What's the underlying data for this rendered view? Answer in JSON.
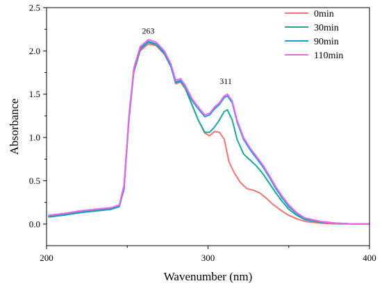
{
  "chart_data": {
    "type": "line",
    "xlabel": "Wavenumber (nm)",
    "ylabel": "Absorbance",
    "xlim": [
      200,
      400
    ],
    "ylim": [
      -0.25,
      2.5
    ],
    "xticks": [
      200,
      300,
      400
    ],
    "xtick_labels": [
      "200",
      "300",
      "400"
    ],
    "yticks": [
      0.0,
      0.5,
      1.0,
      1.5,
      2.0,
      2.5
    ],
    "ytick_labels": [
      "0.0",
      "0.5",
      "1.0",
      "1.5",
      "2.0",
      "2.5"
    ],
    "grid": false,
    "legend_position": "top-right",
    "annotations": [
      {
        "text": "263",
        "x": 263,
        "y": 2.2
      },
      {
        "text": "311",
        "x": 311,
        "y": 1.62
      }
    ],
    "series": [
      {
        "name": "0min",
        "color": "#f07470",
        "points": [
          [
            201,
            0.08
          ],
          [
            210,
            0.1
          ],
          [
            220,
            0.13
          ],
          [
            230,
            0.15
          ],
          [
            240,
            0.17
          ],
          [
            245,
            0.2
          ],
          [
            248,
            0.4
          ],
          [
            251,
            1.2
          ],
          [
            254,
            1.75
          ],
          [
            258,
            2.0
          ],
          [
            263,
            2.08
          ],
          [
            268,
            2.06
          ],
          [
            273,
            1.96
          ],
          [
            277,
            1.82
          ],
          [
            280,
            1.62
          ],
          [
            283,
            1.64
          ],
          [
            286,
            1.56
          ],
          [
            290,
            1.38
          ],
          [
            294,
            1.2
          ],
          [
            298,
            1.05
          ],
          [
            301,
            1.02
          ],
          [
            304,
            1.07
          ],
          [
            307,
            1.06
          ],
          [
            310,
            0.98
          ],
          [
            313,
            0.72
          ],
          [
            316,
            0.6
          ],
          [
            320,
            0.48
          ],
          [
            324,
            0.41
          ],
          [
            328,
            0.39
          ],
          [
            332,
            0.36
          ],
          [
            336,
            0.3
          ],
          [
            340,
            0.23
          ],
          [
            345,
            0.16
          ],
          [
            350,
            0.1
          ],
          [
            355,
            0.06
          ],
          [
            360,
            0.03
          ],
          [
            370,
            0.01
          ],
          [
            380,
            0.0
          ],
          [
            390,
            0.0
          ],
          [
            400,
            0.0
          ]
        ]
      },
      {
        "name": "30min",
        "color": "#1aa69a",
        "points": [
          [
            201,
            0.08
          ],
          [
            210,
            0.1
          ],
          [
            220,
            0.13
          ],
          [
            230,
            0.15
          ],
          [
            240,
            0.17
          ],
          [
            245,
            0.2
          ],
          [
            248,
            0.42
          ],
          [
            251,
            1.22
          ],
          [
            254,
            1.77
          ],
          [
            258,
            2.02
          ],
          [
            263,
            2.1
          ],
          [
            268,
            2.07
          ],
          [
            273,
            1.97
          ],
          [
            277,
            1.82
          ],
          [
            280,
            1.63
          ],
          [
            283,
            1.65
          ],
          [
            286,
            1.57
          ],
          [
            290,
            1.38
          ],
          [
            294,
            1.2
          ],
          [
            298,
            1.06
          ],
          [
            301,
            1.06
          ],
          [
            304,
            1.12
          ],
          [
            307,
            1.2
          ],
          [
            310,
            1.3
          ],
          [
            312,
            1.32
          ],
          [
            315,
            1.2
          ],
          [
            318,
            0.98
          ],
          [
            322,
            0.81
          ],
          [
            326,
            0.74
          ],
          [
            330,
            0.67
          ],
          [
            334,
            0.58
          ],
          [
            338,
            0.47
          ],
          [
            342,
            0.36
          ],
          [
            346,
            0.26
          ],
          [
            350,
            0.17
          ],
          [
            355,
            0.1
          ],
          [
            360,
            0.05
          ],
          [
            370,
            0.02
          ],
          [
            380,
            0.01
          ],
          [
            390,
            0.0
          ],
          [
            400,
            0.0
          ]
        ]
      },
      {
        "name": "90min",
        "color": "#1e9bd6",
        "points": [
          [
            201,
            0.09
          ],
          [
            210,
            0.11
          ],
          [
            220,
            0.14
          ],
          [
            230,
            0.16
          ],
          [
            240,
            0.18
          ],
          [
            245,
            0.21
          ],
          [
            248,
            0.43
          ],
          [
            251,
            1.23
          ],
          [
            254,
            1.78
          ],
          [
            258,
            2.03
          ],
          [
            263,
            2.11
          ],
          [
            268,
            2.08
          ],
          [
            273,
            1.98
          ],
          [
            277,
            1.83
          ],
          [
            280,
            1.64
          ],
          [
            283,
            1.66
          ],
          [
            286,
            1.58
          ],
          [
            290,
            1.43
          ],
          [
            294,
            1.33
          ],
          [
            298,
            1.24
          ],
          [
            301,
            1.26
          ],
          [
            304,
            1.33
          ],
          [
            307,
            1.38
          ],
          [
            310,
            1.46
          ],
          [
            312,
            1.48
          ],
          [
            315,
            1.4
          ],
          [
            318,
            1.18
          ],
          [
            322,
            0.98
          ],
          [
            326,
            0.86
          ],
          [
            330,
            0.76
          ],
          [
            334,
            0.66
          ],
          [
            338,
            0.54
          ],
          [
            342,
            0.41
          ],
          [
            346,
            0.3
          ],
          [
            350,
            0.2
          ],
          [
            355,
            0.12
          ],
          [
            360,
            0.06
          ],
          [
            370,
            0.02
          ],
          [
            380,
            0.01
          ],
          [
            390,
            0.0
          ],
          [
            400,
            0.0
          ]
        ]
      },
      {
        "name": "110min",
        "color": "#ee66ee",
        "points": [
          [
            201,
            0.1
          ],
          [
            210,
            0.12
          ],
          [
            220,
            0.15
          ],
          [
            230,
            0.17
          ],
          [
            240,
            0.19
          ],
          [
            245,
            0.22
          ],
          [
            248,
            0.45
          ],
          [
            251,
            1.25
          ],
          [
            254,
            1.8
          ],
          [
            258,
            2.05
          ],
          [
            263,
            2.13
          ],
          [
            268,
            2.1
          ],
          [
            273,
            2.0
          ],
          [
            277,
            1.85
          ],
          [
            280,
            1.66
          ],
          [
            283,
            1.68
          ],
          [
            286,
            1.6
          ],
          [
            290,
            1.45
          ],
          [
            294,
            1.35
          ],
          [
            298,
            1.26
          ],
          [
            301,
            1.28
          ],
          [
            304,
            1.35
          ],
          [
            307,
            1.4
          ],
          [
            310,
            1.48
          ],
          [
            312,
            1.5
          ],
          [
            315,
            1.42
          ],
          [
            318,
            1.2
          ],
          [
            322,
            1.0
          ],
          [
            326,
            0.88
          ],
          [
            330,
            0.78
          ],
          [
            334,
            0.68
          ],
          [
            338,
            0.56
          ],
          [
            342,
            0.43
          ],
          [
            346,
            0.32
          ],
          [
            350,
            0.22
          ],
          [
            355,
            0.13
          ],
          [
            360,
            0.07
          ],
          [
            370,
            0.03
          ],
          [
            380,
            0.01
          ],
          [
            390,
            0.0
          ],
          [
            400,
            0.0
          ]
        ]
      }
    ]
  }
}
